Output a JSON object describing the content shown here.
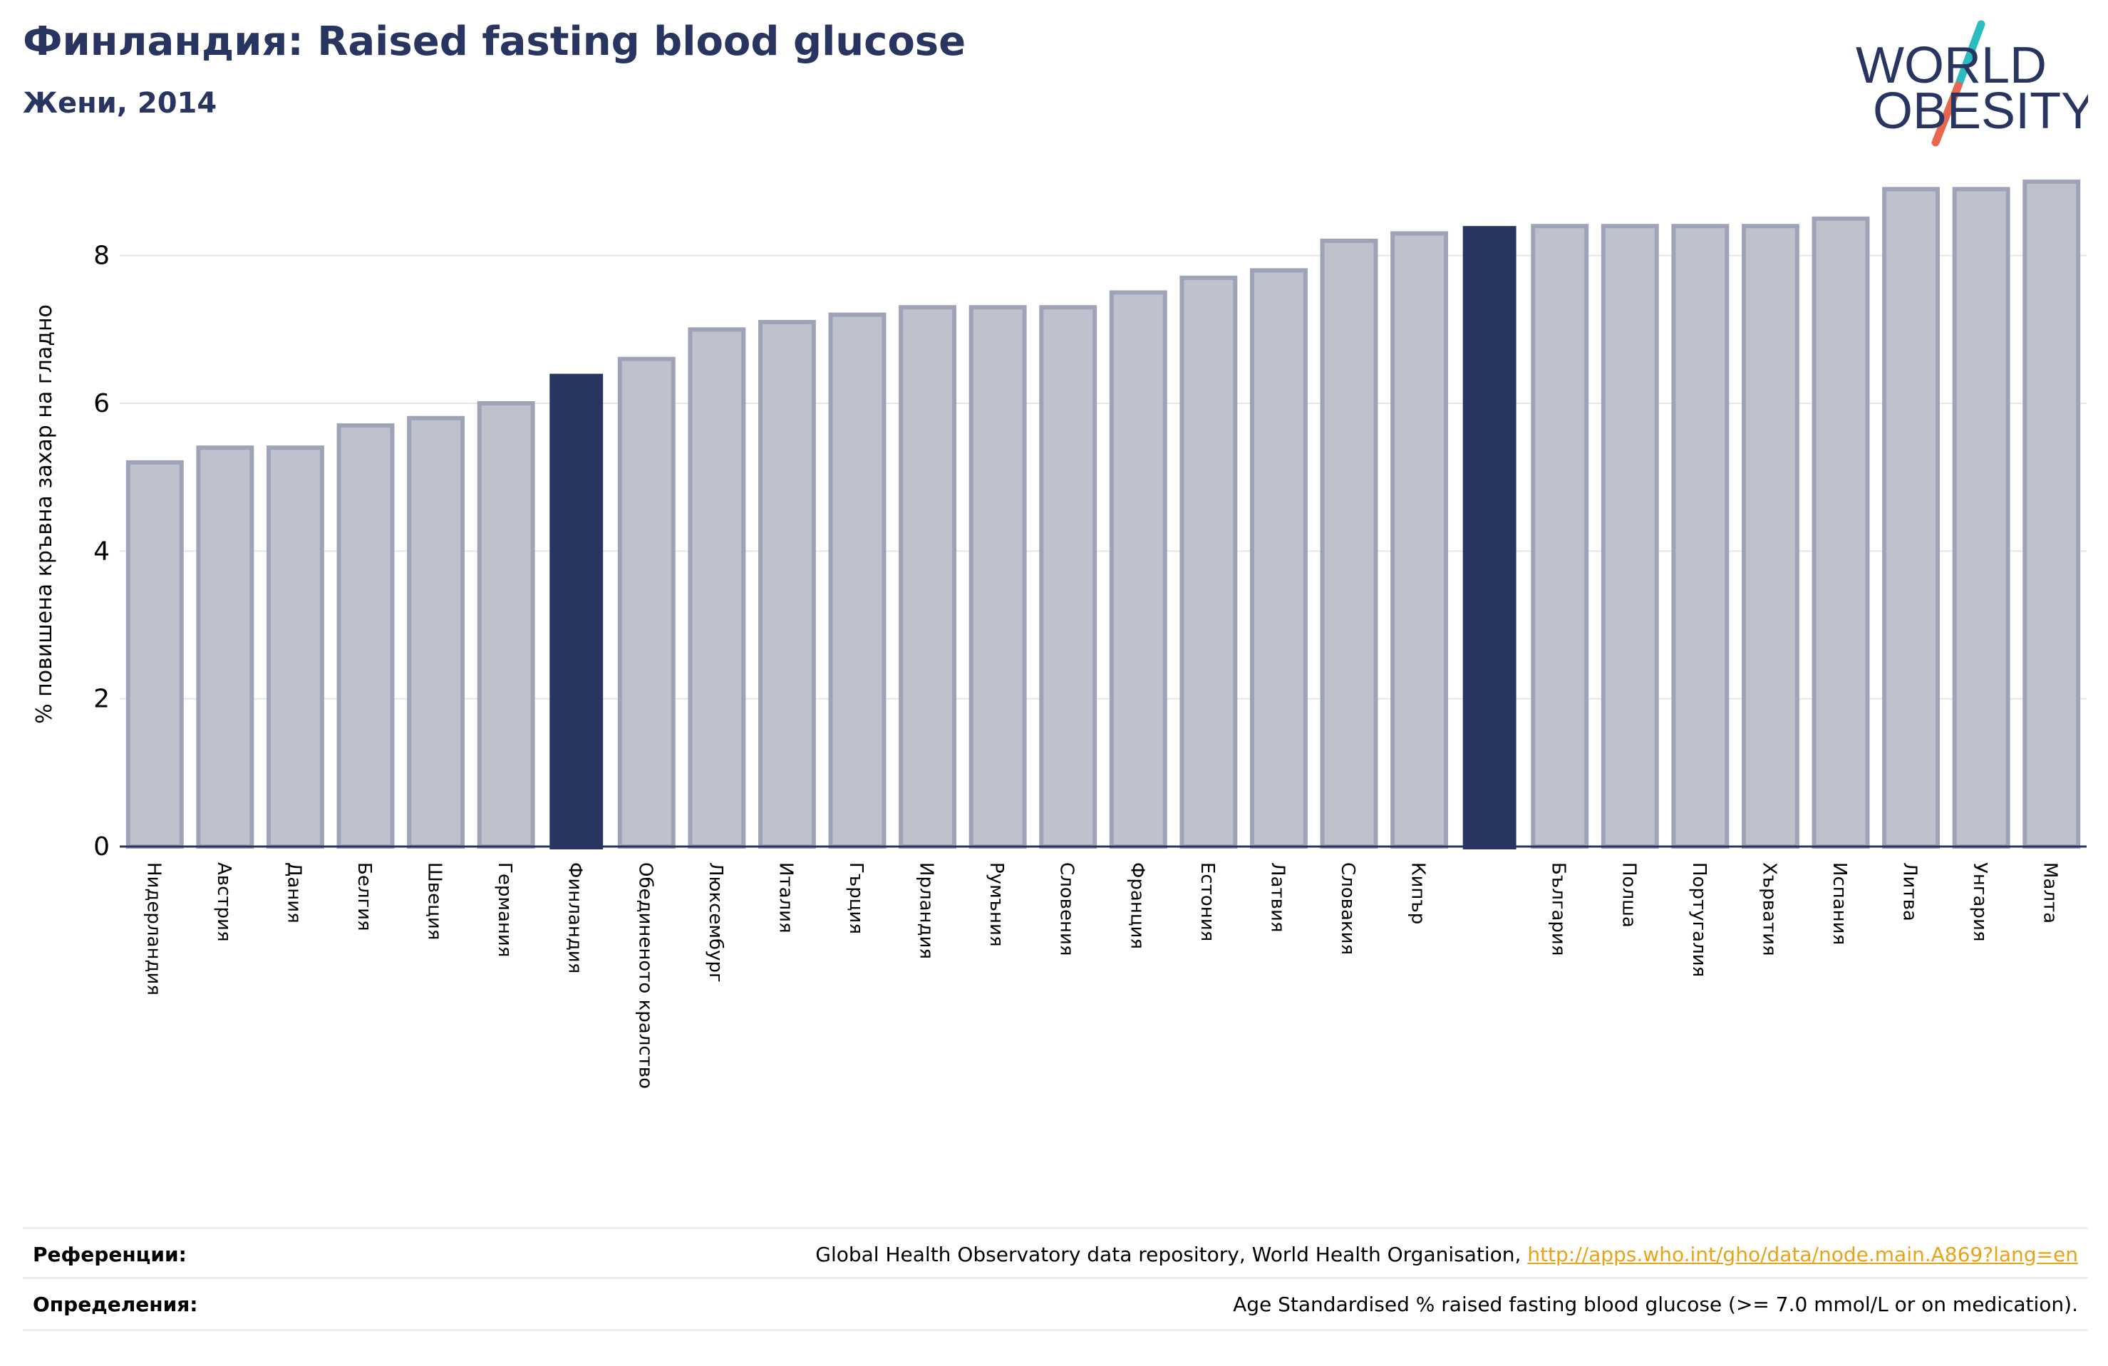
{
  "header": {
    "title": "Финландия: Raised fasting blood glucose",
    "subtitle": "Жени, 2014"
  },
  "logo": {
    "line1": "WORLD",
    "line2": "OBESITY"
  },
  "chart_data": {
    "type": "bar",
    "ylabel": "% повишена кръвна захар на гладно",
    "ylim": [
      0,
      9.0
    ],
    "yticks": [
      0,
      2,
      4,
      6,
      8
    ],
    "grid": true,
    "categories": [
      "Нидерландия",
      "Австрия",
      "Дания",
      "Белгия",
      "Швеция",
      "Германия",
      "Финландия",
      "Обединеното кралство",
      "Люксембург",
      "Италия",
      "Гърция",
      "Ирландия",
      "Румъния",
      "Словения",
      "Франция",
      "Естония",
      "Латвия",
      "Словакия",
      "Кипър",
      "",
      "България",
      "Полша",
      "Португалия",
      "Хърватия",
      "Испания",
      "Литва",
      "Унгария",
      "Малта"
    ],
    "values": [
      5.2,
      5.4,
      5.4,
      5.7,
      5.8,
      6.0,
      6.4,
      6.6,
      7.0,
      7.1,
      7.2,
      7.3,
      7.3,
      7.3,
      7.5,
      7.7,
      7.8,
      8.2,
      8.3,
      8.4,
      8.4,
      8.4,
      8.4,
      8.4,
      8.5,
      8.9,
      8.9,
      9.0
    ],
    "highlighted": [
      6,
      19
    ],
    "colors": {
      "bar": "#bfc1cd",
      "bar_border": "#9ea3b8",
      "highlight": "#283561",
      "grid": "#e6e6e6",
      "axis": "#283561"
    }
  },
  "footer": {
    "references_label": "Референции:",
    "references_text": "Global Health Observatory data repository, World Health Organisation, ",
    "references_link": "http://apps.who.int/gho/data/node.main.A869?lang=en",
    "definitions_label": "Определения:",
    "definitions_text": "Age Standardised % raised fasting blood glucose (>= 7.0 mmol/L or on medication)."
  }
}
